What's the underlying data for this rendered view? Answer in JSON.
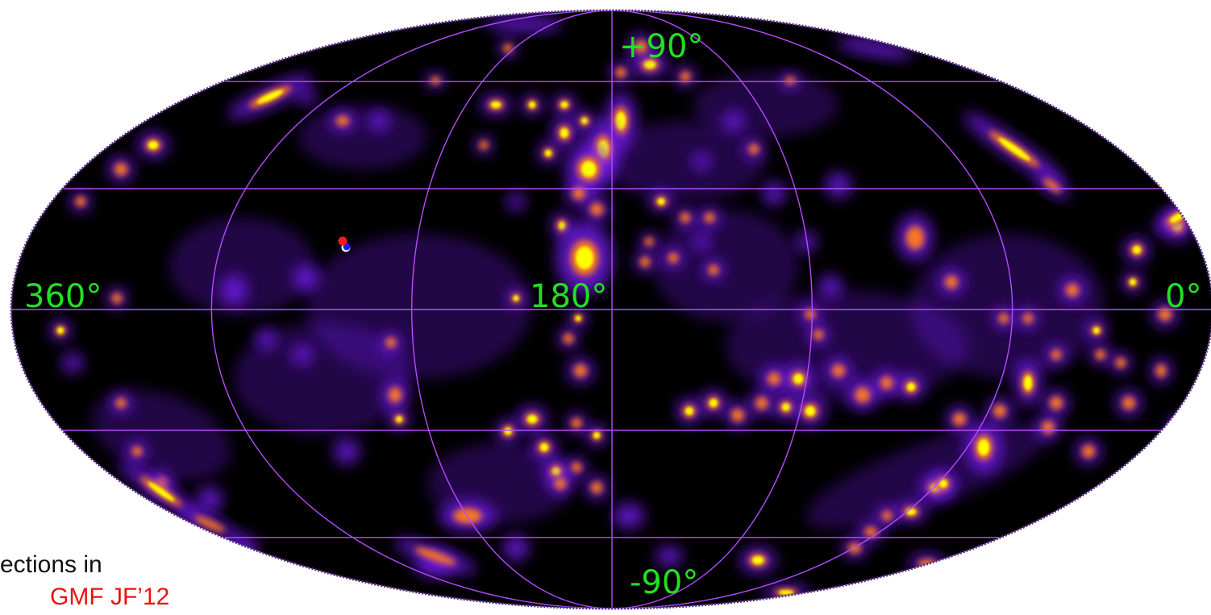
{
  "colors": {
    "background": "#000000",
    "grid": "#b44cff",
    "label": "#22e022",
    "caption_dark": "#111111",
    "caption_red": "#ee1111",
    "marker_red": "#ff1a1a",
    "marker_blue": "#1a1aff",
    "marker_white": "#ffffff"
  },
  "map": {
    "projection": "mollweide",
    "colormap": [
      "#000000",
      "#7a1cff",
      "#ff7a1a",
      "#ffff00"
    ],
    "labels": {
      "north": "+90°",
      "south": "-90°",
      "left": "360°",
      "center": "180°",
      "right": "0°"
    }
  },
  "caption": {
    "line1": "ections in",
    "line2": "GMF JF’12"
  }
}
